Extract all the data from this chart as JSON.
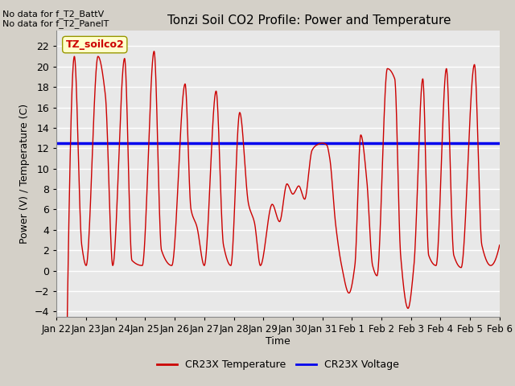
{
  "title": "Tonzi Soil CO2 Profile: Power and Temperature",
  "ylabel": "Power (V) / Temperature (C)",
  "xlabel": "Time",
  "no_data_text1": "No data for f_T2_BattV",
  "no_data_text2": "No data for f_T2_PanelT",
  "legend_box_label": "TZ_soilco2",
  "blue_line_y": 12.5,
  "ylim": [
    -4.5,
    23.5
  ],
  "yticks": [
    -4,
    -2,
    0,
    2,
    4,
    6,
    8,
    10,
    12,
    14,
    16,
    18,
    20,
    22
  ],
  "red_line_color": "#cc0000",
  "blue_line_color": "#0000ee",
  "axes_bg_color": "#e8e8e8",
  "fig_bg_color": "#d4d0c8",
  "legend_temp_label": "CR23X Temperature",
  "legend_volt_label": "CR23X Voltage",
  "x_tick_labels": [
    "Jan 22",
    "Jan 23",
    "Jan 24",
    "Jan 25",
    "Jan 26",
    "Jan 27",
    "Jan 28",
    "Jan 29",
    "Jan 30",
    "Jan 31",
    "Feb 1",
    "Feb 2",
    "Feb 3",
    "Feb 4",
    "Feb 5",
    "Feb 6"
  ],
  "days": 15,
  "pts_per_day": 144,
  "peaks": [
    {
      "day": 0.4,
      "val": 2.5
    },
    {
      "day": 0.6,
      "val": 21.0
    },
    {
      "day": 0.85,
      "val": 2.5
    },
    {
      "day": 1.0,
      "val": 0.5
    },
    {
      "day": 1.4,
      "val": 21.0
    },
    {
      "day": 1.65,
      "val": 17.2
    },
    {
      "day": 1.9,
      "val": 0.5
    },
    {
      "day": 2.3,
      "val": 20.8
    },
    {
      "day": 2.55,
      "val": 1.0
    },
    {
      "day": 2.9,
      "val": 0.5
    },
    {
      "day": 3.3,
      "val": 21.5
    },
    {
      "day": 3.55,
      "val": 2.0
    },
    {
      "day": 3.9,
      "val": 0.5
    },
    {
      "day": 4.35,
      "val": 18.3
    },
    {
      "day": 4.55,
      "val": 6.0
    },
    {
      "day": 4.75,
      "val": 4.3
    },
    {
      "day": 5.0,
      "val": 0.5
    },
    {
      "day": 5.4,
      "val": 17.6
    },
    {
      "day": 5.65,
      "val": 2.5
    },
    {
      "day": 5.9,
      "val": 0.5
    },
    {
      "day": 6.2,
      "val": 15.5
    },
    {
      "day": 6.5,
      "val": 6.5
    },
    {
      "day": 6.7,
      "val": 4.7
    },
    {
      "day": 6.9,
      "val": 0.5
    },
    {
      "day": 7.3,
      "val": 6.5
    },
    {
      "day": 7.55,
      "val": 4.8
    },
    {
      "day": 7.8,
      "val": 8.5
    },
    {
      "day": 8.0,
      "val": 7.5
    },
    {
      "day": 8.2,
      "val": 8.3
    },
    {
      "day": 8.4,
      "val": 7.0
    },
    {
      "day": 8.65,
      "val": 11.8
    },
    {
      "day": 8.8,
      "val": 12.3
    },
    {
      "day": 9.0,
      "val": 12.5
    },
    {
      "day": 9.15,
      "val": 12.3
    },
    {
      "day": 9.25,
      "val": 11.0
    },
    {
      "day": 9.45,
      "val": 4.5
    },
    {
      "day": 9.65,
      "val": 0.5
    },
    {
      "day": 9.9,
      "val": -2.2
    },
    {
      "day": 10.1,
      "val": 0.5
    },
    {
      "day": 10.3,
      "val": 13.3
    },
    {
      "day": 10.5,
      "val": 9.0
    },
    {
      "day": 10.7,
      "val": 0.5
    },
    {
      "day": 10.85,
      "val": -0.5
    },
    {
      "day": 11.2,
      "val": 19.8
    },
    {
      "day": 11.45,
      "val": 18.8
    },
    {
      "day": 11.65,
      "val": 1.5
    },
    {
      "day": 11.9,
      "val": -3.7
    },
    {
      "day": 12.1,
      "val": 0.5
    },
    {
      "day": 12.4,
      "val": 18.8
    },
    {
      "day": 12.6,
      "val": 1.5
    },
    {
      "day": 12.85,
      "val": 0.5
    },
    {
      "day": 13.2,
      "val": 19.8
    },
    {
      "day": 13.45,
      "val": 1.5
    },
    {
      "day": 13.7,
      "val": 0.3
    },
    {
      "day": 14.15,
      "val": 20.2
    },
    {
      "day": 14.4,
      "val": 2.5
    },
    {
      "day": 14.7,
      "val": 0.5
    },
    {
      "day": 15.0,
      "val": 2.5
    }
  ]
}
